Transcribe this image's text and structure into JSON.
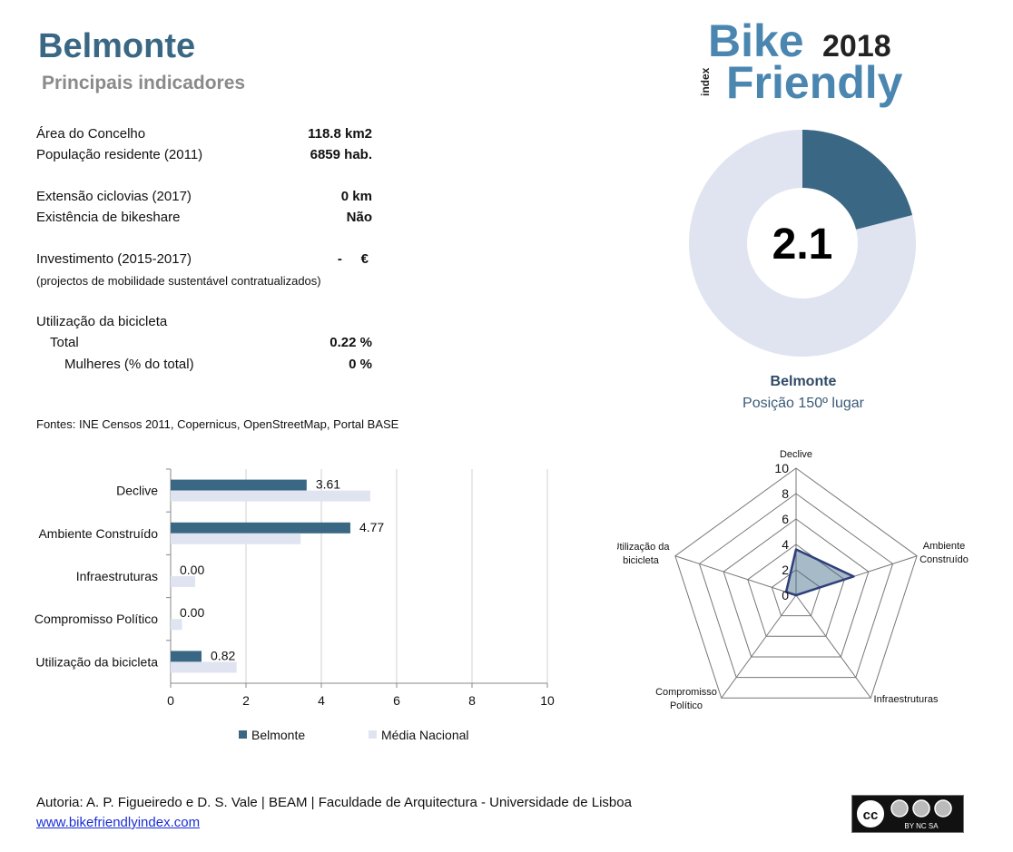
{
  "header": {
    "title": "Belmonte",
    "subtitle": "Principais indicadores"
  },
  "logo": {
    "word1": "Bike",
    "year": "2018",
    "index": "index",
    "word2": "Friendly"
  },
  "indicators": [
    {
      "label": "Área do Concelho",
      "value": "118.8 km2"
    },
    {
      "label": "População residente (2011)",
      "value": "6859 hab."
    },
    {
      "label": "Extensão ciclovias (2017)",
      "value": "0 km"
    },
    {
      "label": "Existência de bikeshare",
      "value": "Não"
    },
    {
      "label": "Investimento (2015-2017)",
      "value": "-     €"
    },
    {
      "label": "Utilização da bicicleta",
      "value": ""
    },
    {
      "label": "Total",
      "value": "0.22 %"
    },
    {
      "label": "Mulheres (% do total)",
      "value": "0 %"
    }
  ],
  "investment_note": "(projectos de mobilidade sustentável contratualizados)",
  "sources": "Fontes: INE Censos 2011, Copernicus, OpenStreetMap,  Portal BASE",
  "score": {
    "value": "2.1",
    "fraction": 0.21,
    "name": "Belmonte",
    "position": "Posição 150º lugar"
  },
  "colors": {
    "primary": "#3a6784",
    "secondary": "#dfe4f0",
    "title": "#3a6784"
  },
  "chart_data": [
    {
      "type": "bar",
      "orientation": "horizontal",
      "categories": [
        "Declive",
        "Ambiente Construído",
        "Infraestruturas",
        "Compromisso Político",
        "Utilização da bicicleta"
      ],
      "series": [
        {
          "name": "Belmonte",
          "values": [
            3.61,
            4.77,
            0.0,
            0.0,
            0.82
          ],
          "labels": [
            "3.61",
            "4.77",
            "0.00",
            "0.00",
            "0.82"
          ],
          "color": "#3a6784"
        },
        {
          "name": "Média Nacional",
          "values": [
            5.3,
            3.45,
            0.65,
            0.3,
            1.75
          ],
          "color": "#dfe4f0"
        }
      ],
      "xlim": [
        0,
        10
      ],
      "xticks": [
        "0",
        "2",
        "4",
        "6",
        "8",
        "10"
      ],
      "grid": true,
      "legend": "bottom"
    },
    {
      "type": "radar",
      "axes": [
        "Declive",
        "Ambiente Construído",
        "Infraestruturas",
        "Compromisso Político",
        "Utilização da bicicleta"
      ],
      "axis_labels": [
        [
          "Declive"
        ],
        [
          "Ambiente",
          "Construído"
        ],
        [
          "Infraestruturas"
        ],
        [
          "Compromisso",
          "Político"
        ],
        [
          "Utilização da",
          "bicicleta"
        ]
      ],
      "series": [
        {
          "name": "Belmonte",
          "values": [
            3.61,
            4.77,
            0.0,
            0.0,
            0.82
          ],
          "color": "#3a6784"
        }
      ],
      "rlim": [
        0,
        10
      ],
      "rticks": [
        "0",
        "2",
        "4",
        "6",
        "8",
        "10"
      ]
    }
  ],
  "footer": {
    "author": "Autoria: A. P. Figueiredo e D. S. Vale | BEAM | Faculdade de Arquitectura - Universidade de Lisboa",
    "link": "www.bikefriendlyindex.com",
    "license": "BY NC SA"
  }
}
